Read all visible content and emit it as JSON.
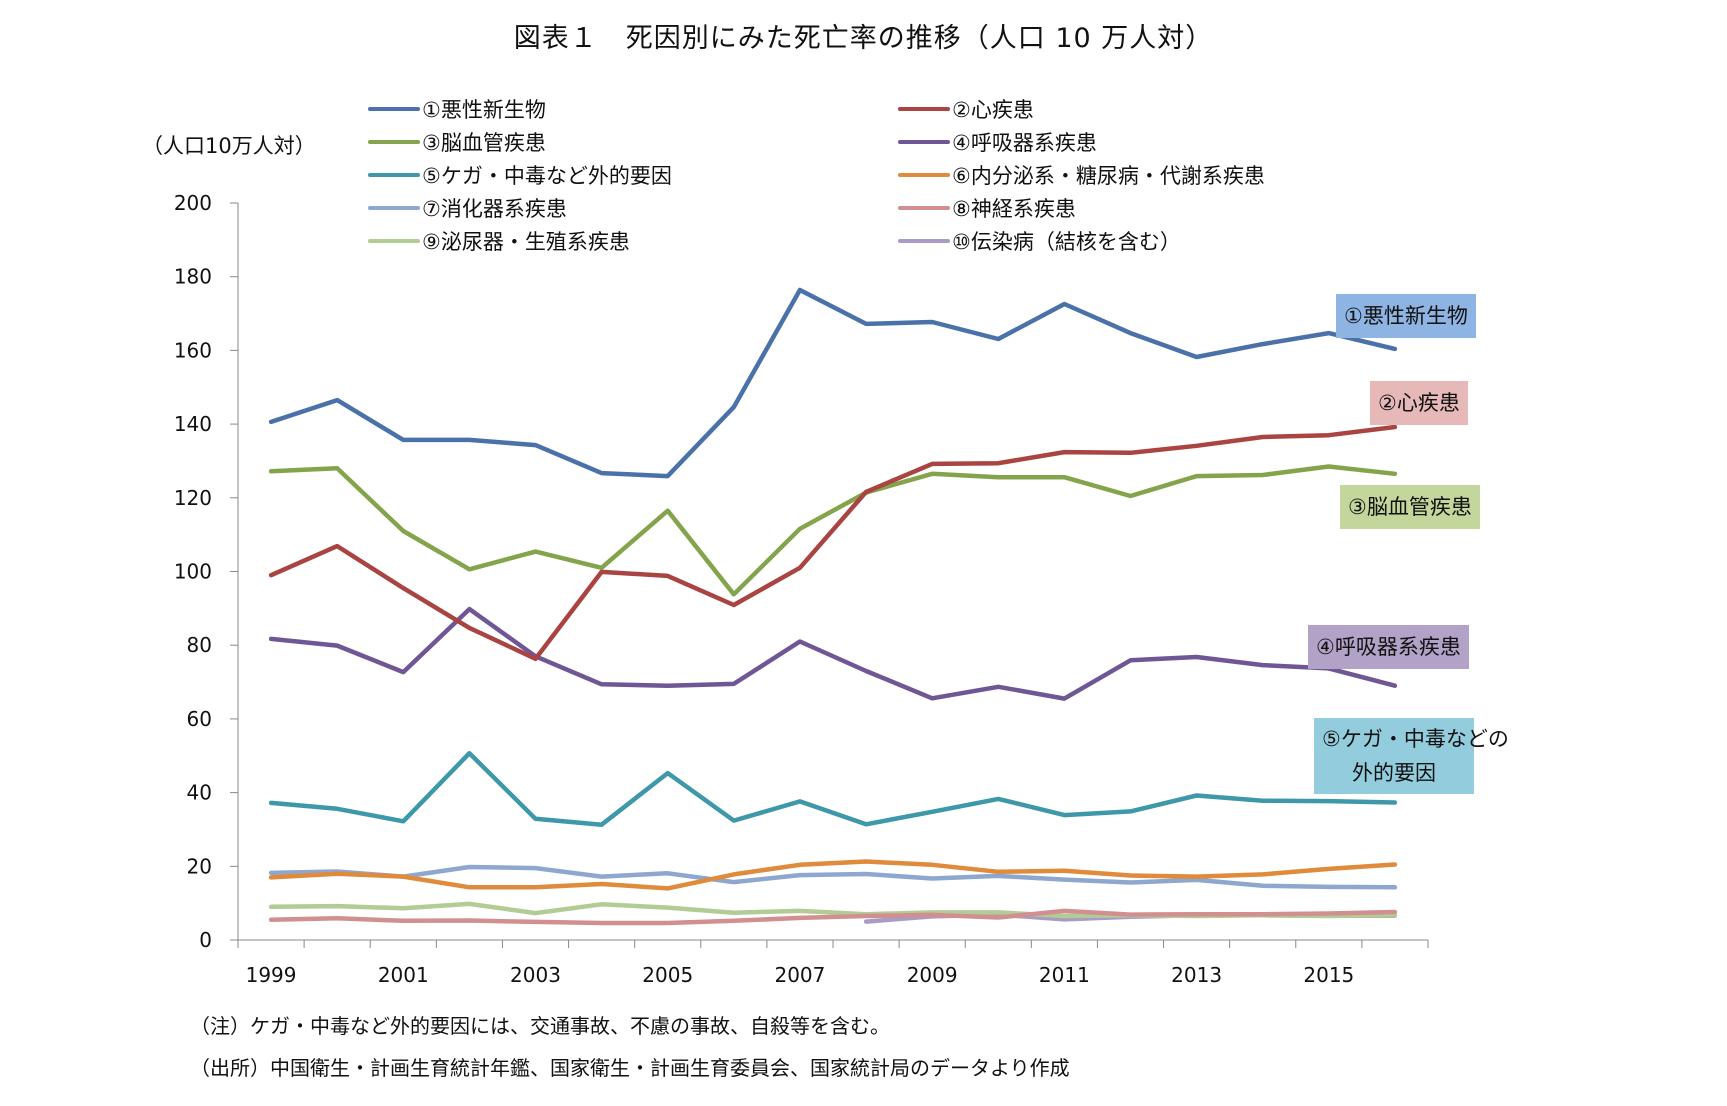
{
  "chart_data": {
    "type": "line",
    "title": "図表１　死因別にみた死亡率の推移（人口 10 万人対）",
    "ylabel": "（人口10万人対）",
    "xlabel": "",
    "ylim": [
      0,
      200
    ],
    "yticks": [
      0,
      20,
      40,
      60,
      80,
      100,
      120,
      140,
      160,
      180,
      200
    ],
    "x": [
      1999,
      2000,
      2001,
      2002,
      2003,
      2004,
      2005,
      2006,
      2007,
      2008,
      2009,
      2010,
      2011,
      2012,
      2013,
      2014,
      2015,
      2016
    ],
    "xtick_labels": [
      "1999",
      "2001",
      "2003",
      "2005",
      "2007",
      "2009",
      "2011",
      "2013",
      "2015"
    ],
    "grid": false,
    "legend_position": "top",
    "series": [
      {
        "name": "①悪性新生物",
        "color": "#4A72A8",
        "values": [
          140.6,
          146.5,
          135.7,
          135.7,
          134.3,
          126.7,
          125.9,
          144.6,
          176.4,
          167.2,
          167.7,
          163.1,
          172.6,
          164.7,
          158.2,
          161.7,
          164.7,
          160.4
        ]
      },
      {
        "name": "②心疾患",
        "color": "#A94442",
        "values": [
          99.0,
          106.9,
          95.5,
          84.7,
          76.3,
          99.9,
          98.8,
          90.9,
          101.0,
          121.6,
          129.2,
          129.4,
          132.4,
          132.2,
          134.1,
          136.5,
          137.0,
          139.2
        ]
      },
      {
        "name": "③脳血管疾患",
        "color": "#84A44C",
        "values": [
          127.2,
          128.0,
          111.0,
          100.6,
          105.4,
          101.0,
          116.5,
          93.8,
          111.6,
          121.4,
          126.5,
          125.6,
          125.6,
          120.5,
          125.9,
          126.2,
          128.5,
          126.5
        ]
      },
      {
        "name": "④呼吸器系疾患",
        "color": "#6F5796",
        "values": [
          81.7,
          79.9,
          72.7,
          89.8,
          77.0,
          69.4,
          69.0,
          69.5,
          81.0,
          73.0,
          65.6,
          68.7,
          65.5,
          75.9,
          76.8,
          74.6,
          73.7,
          69.0
        ]
      },
      {
        "name": "⑤ケガ・中毒など外的要因",
        "color": "#3E98AA",
        "values": [
          37.2,
          35.6,
          32.2,
          50.7,
          32.9,
          31.3,
          45.3,
          32.4,
          37.6,
          31.4,
          34.8,
          38.3,
          33.9,
          34.9,
          39.2,
          37.8,
          37.7,
          37.3
        ]
      },
      {
        "name": "⑥内分泌系・糖尿病・代謝系疾患",
        "color": "#E08A3C",
        "values": [
          17.0,
          18.0,
          17.2,
          14.3,
          14.3,
          15.2,
          14.0,
          17.8,
          20.4,
          21.3,
          20.4,
          18.5,
          18.8,
          17.5,
          17.2,
          17.8,
          19.3,
          20.5
        ]
      },
      {
        "name": "⑦消化器系疾患",
        "color": "#8EA7CF",
        "values": [
          18.2,
          18.6,
          17.2,
          19.8,
          19.5,
          17.2,
          18.1,
          15.7,
          17.6,
          17.9,
          16.7,
          17.4,
          16.4,
          15.6,
          16.3,
          14.7,
          14.4,
          14.3
        ]
      },
      {
        "name": "⑧神経系疾患",
        "color": "#D28F90",
        "values": [
          5.5,
          5.9,
          5.2,
          5.3,
          4.9,
          4.6,
          4.6,
          5.2,
          6.0,
          6.5,
          6.8,
          6.1,
          7.9,
          6.9,
          7.0,
          7.0,
          7.2,
          7.6
        ]
      },
      {
        "name": "⑨泌尿器・生殖系疾患",
        "color": "#B2CC95",
        "values": [
          9.0,
          9.2,
          8.6,
          9.8,
          7.3,
          9.7,
          8.8,
          7.4,
          7.9,
          7.0,
          7.5,
          7.5,
          6.5,
          6.7,
          6.5,
          6.7,
          6.5,
          6.7
        ]
      },
      {
        "name": "⑩伝染病（結核を含む）",
        "color": "#A99BC6",
        "values": [
          null,
          null,
          null,
          null,
          null,
          null,
          null,
          null,
          null,
          5.0,
          6.4,
          6.9,
          5.6,
          6.3,
          6.7,
          6.7,
          6.6,
          6.6
        ]
      }
    ],
    "annotations": [
      {
        "text": "①悪性新生物",
        "bg": "#8EB4E3",
        "series": 0
      },
      {
        "text": "②心疾患",
        "bg": "#E6B9B8",
        "series": 1
      },
      {
        "text": "③脳血管疾患",
        "bg": "#C3D69B",
        "series": 2
      },
      {
        "text": "④呼吸器系疾患",
        "bg": "#B3A2C7",
        "series": 3
      },
      {
        "text": "⑤ケガ・中毒などの\n外的要因",
        "line1": "⑤ケガ・中毒などの",
        "line2": "外的要因",
        "bg": "#93CDDD",
        "series": 4
      }
    ]
  },
  "notes": {
    "note1": "（注）ケガ・中毒など外的要因には、交通事故、不慮の事故、自殺等を含む。",
    "note2": "（出所）中国衛生・計画生育統計年鑑、国家衛生・計画生育委員会、国家統計局のデータより作成"
  }
}
